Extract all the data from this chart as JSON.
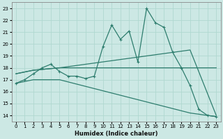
{
  "xlabel": "Humidex (Indice chaleur)",
  "background_color": "#cce8e4",
  "grid_color": "#b0d8d0",
  "line_color": "#2e7d6e",
  "xlim": [
    -0.5,
    23.5
  ],
  "ylim": [
    13.5,
    23.5
  ],
  "xticks": [
    0,
    1,
    2,
    3,
    4,
    5,
    6,
    7,
    8,
    9,
    10,
    11,
    12,
    13,
    14,
    15,
    16,
    17,
    18,
    19,
    20,
    21,
    22,
    23
  ],
  "yticks": [
    14,
    15,
    16,
    17,
    18,
    19,
    20,
    21,
    22,
    23
  ],
  "series1_x": [
    0,
    1,
    2,
    3,
    4,
    5,
    6,
    7,
    8,
    9,
    10,
    11,
    12,
    13,
    14,
    15,
    16,
    17,
    18,
    19,
    20,
    21,
    22,
    23
  ],
  "series1_y": [
    16.7,
    17.0,
    17.5,
    18.0,
    18.3,
    17.7,
    17.3,
    17.3,
    17.1,
    17.3,
    19.8,
    21.6,
    20.4,
    21.1,
    18.5,
    23.0,
    21.8,
    21.4,
    19.3,
    18.0,
    16.5,
    14.5,
    14.0,
    13.9
  ],
  "series2_x": [
    0,
    2,
    5,
    20,
    23
  ],
  "series2_y": [
    17.5,
    17.8,
    18.0,
    18.0,
    18.0
  ],
  "series3_x": [
    0,
    2,
    5,
    20,
    23
  ],
  "series3_y": [
    17.5,
    17.8,
    18.0,
    19.5,
    14.0
  ],
  "series4_x": [
    0,
    2,
    5,
    20,
    23
  ],
  "series4_y": [
    16.7,
    17.0,
    17.0,
    14.2,
    13.9
  ]
}
